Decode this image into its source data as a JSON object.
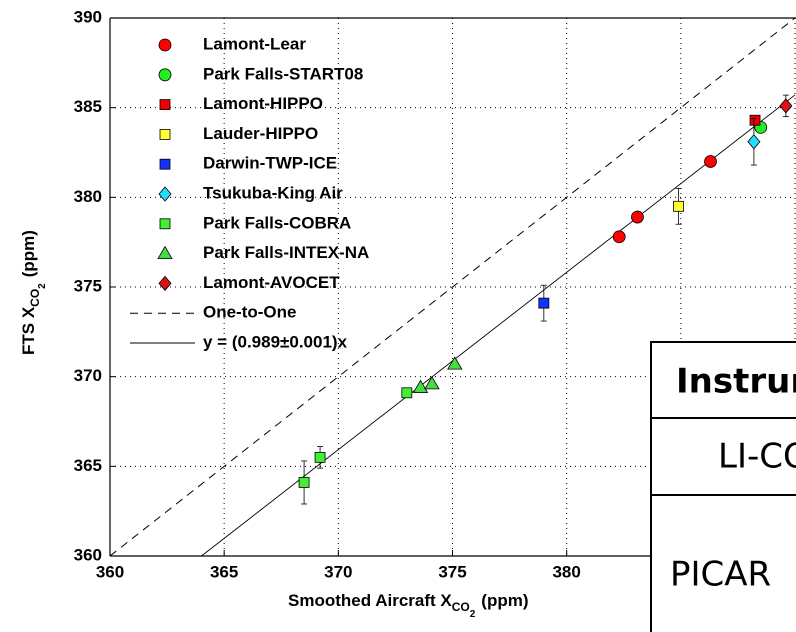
{
  "chart_data": {
    "type": "scatter",
    "xlabel": {
      "text": "Smoothed Aircraft X",
      "sub": "CO",
      "subsub": "2",
      "suffix": "(ppm)"
    },
    "ylabel": {
      "text": "FTS X",
      "sub": "CO",
      "subsub": "2",
      "suffix": "(ppm)"
    },
    "xlim": [
      360,
      390
    ],
    "ylim": [
      360,
      390
    ],
    "xticks": [
      360,
      365,
      370,
      375,
      380,
      385,
      390
    ],
    "yticks": [
      360,
      365,
      370,
      375,
      380,
      385,
      390
    ],
    "grid": true,
    "series": [
      {
        "name": "Lamont-Lear",
        "color": "#ff0000",
        "marker": "circle",
        "x": [
          382.3,
          383.1,
          386.3
        ],
        "values": [
          377.8,
          378.9,
          382.0
        ],
        "yerr": [
          null,
          null,
          null
        ]
      },
      {
        "name": "Park Falls-START08",
        "color": "#22ee22",
        "marker": "circle",
        "x": [
          388.5
        ],
        "values": [
          383.9
        ],
        "yerr": [
          null
        ]
      },
      {
        "name": "Lamont-HIPPO",
        "color": "#ee0000",
        "marker": "square",
        "x": [
          388.25
        ],
        "values": [
          384.3
        ],
        "yerr": [
          null
        ]
      },
      {
        "name": "Lauder-HIPPO",
        "color": "#ffff33",
        "marker": "square",
        "x": [
          384.9
        ],
        "values": [
          379.5
        ],
        "yerr": [
          1.0
        ]
      },
      {
        "name": "Darwin-TWP-ICE",
        "color": "#1133ff",
        "marker": "square",
        "x": [
          379.0
        ],
        "values": [
          374.1
        ],
        "yerr": [
          1.0
        ]
      },
      {
        "name": "Tsukuba-King Air",
        "color": "#22ddff",
        "marker": "diamond",
        "x": [
          388.2
        ],
        "values": [
          383.1
        ],
        "yerr": [
          1.3
        ]
      },
      {
        "name": "Park Falls-COBRA",
        "color": "#44ee33",
        "marker": "square",
        "x": [
          368.5,
          369.2,
          373.0
        ],
        "values": [
          364.1,
          365.5,
          369.1
        ],
        "yerr": [
          1.2,
          0.6,
          null
        ]
      },
      {
        "name": "Park Falls-INTEX-NA",
        "color": "#44dd44",
        "marker": "triangle",
        "x": [
          373.6,
          374.1,
          375.1
        ],
        "values": [
          369.4,
          369.6,
          370.7
        ],
        "yerr": [
          null,
          null,
          null
        ]
      },
      {
        "name": "Lamont-AVOCET",
        "color": "#dd1111",
        "marker": "diamond",
        "x": [
          389.6
        ],
        "values": [
          385.1
        ],
        "yerr": [
          0.6
        ]
      }
    ],
    "one_to_one_label": "One-to-One",
    "fit_label": "y = (0.989±0.001)x",
    "fit_slope": 0.989
  },
  "table": {
    "rows": [
      [
        "Instrum"
      ],
      [
        "LI-CO"
      ],
      [
        "PICAR"
      ]
    ]
  }
}
